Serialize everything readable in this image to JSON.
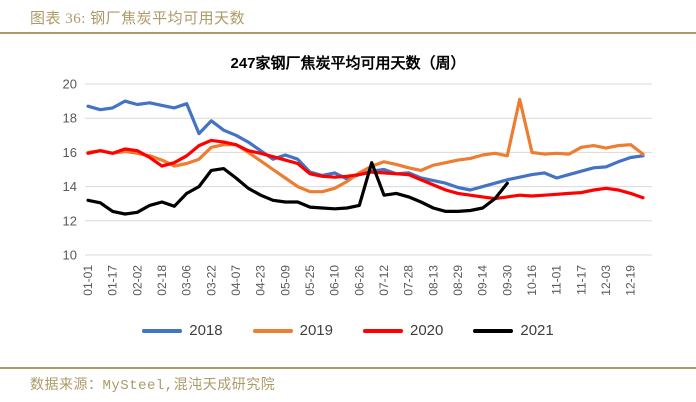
{
  "header": {
    "label": "图表 36: 钢厂焦炭平均可用天数"
  },
  "footer": {
    "source": "数据来源：MySteel,混沌天成研究院"
  },
  "chart_data": {
    "type": "line",
    "title": "247家钢厂焦炭平均可用天数（周）",
    "ylabel": "",
    "xlabel": "",
    "ylim": [
      10,
      20
    ],
    "yticks": [
      10,
      12,
      14,
      16,
      18,
      20
    ],
    "grid": true,
    "grid_color": "#D9D9D9",
    "axis_text_color": "#595959",
    "legend_position": "bottom",
    "x": [
      "01-01",
      "01-09",
      "01-17",
      "01-25",
      "02-02",
      "02-10",
      "02-18",
      "02-26",
      "03-06",
      "03-14",
      "03-22",
      "03-30",
      "04-07",
      "04-15",
      "04-23",
      "05-01",
      "05-09",
      "05-17",
      "05-25",
      "06-02",
      "06-10",
      "06-18",
      "06-26",
      "07-04",
      "07-12",
      "07-20",
      "07-28",
      "08-05",
      "08-13",
      "08-21",
      "08-29",
      "09-06",
      "09-14",
      "09-22",
      "09-30",
      "10-08",
      "10-16",
      "10-24",
      "11-01",
      "11-09",
      "11-17",
      "11-25",
      "12-03",
      "12-11",
      "12-19",
      "12-27"
    ],
    "x_tick_labels": [
      "01-01",
      "01-17",
      "02-02",
      "02-18",
      "03-06",
      "03-22",
      "04-07",
      "04-23",
      "05-09",
      "05-25",
      "06-10",
      "06-26",
      "07-12",
      "07-28",
      "08-13",
      "08-29",
      "09-14",
      "09-30",
      "10-16",
      "11-01",
      "11-17",
      "12-03",
      "12-19"
    ],
    "series": [
      {
        "name": "2018",
        "color": "#4472C4",
        "values": [
          18.7,
          18.5,
          18.6,
          19.0,
          18.8,
          18.9,
          18.75,
          18.6,
          18.85,
          17.1,
          17.85,
          17.3,
          17.0,
          16.6,
          16.1,
          15.6,
          15.85,
          15.6,
          14.85,
          14.65,
          14.8,
          14.45,
          14.7,
          14.9,
          15.0,
          14.75,
          14.8,
          14.5,
          14.35,
          14.2,
          13.95,
          13.8,
          14.0,
          14.2,
          14.4,
          14.55,
          14.7,
          14.8,
          14.5,
          14.7,
          14.9,
          15.1,
          15.15,
          15.45,
          15.7,
          15.8
        ]
      },
      {
        "name": "2019",
        "color": "#ED7D31",
        "values": [
          16.0,
          16.1,
          15.95,
          16.05,
          15.95,
          15.8,
          15.55,
          15.2,
          15.35,
          15.6,
          16.3,
          16.45,
          16.45,
          16.0,
          15.5,
          15.0,
          14.5,
          14.0,
          13.7,
          13.7,
          13.9,
          14.3,
          14.8,
          15.2,
          15.45,
          15.3,
          15.1,
          14.95,
          15.25,
          15.4,
          15.55,
          15.65,
          15.85,
          15.95,
          15.8,
          19.1,
          16.0,
          15.9,
          15.95,
          15.9,
          16.3,
          16.4,
          16.25,
          16.4,
          16.45,
          15.9
        ]
      },
      {
        "name": "2020",
        "color": "#FF0000",
        "values": [
          15.95,
          16.1,
          15.95,
          16.2,
          16.1,
          15.7,
          15.2,
          15.4,
          15.8,
          16.4,
          16.7,
          16.6,
          16.45,
          16.1,
          15.95,
          15.75,
          15.55,
          15.35,
          14.75,
          14.6,
          14.55,
          14.6,
          14.7,
          14.85,
          14.8,
          14.75,
          14.7,
          14.4,
          14.1,
          13.8,
          13.6,
          13.5,
          13.4,
          13.3,
          13.4,
          13.5,
          13.45,
          13.5,
          13.55,
          13.6,
          13.65,
          13.8,
          13.9,
          13.8,
          13.6,
          13.35
        ]
      },
      {
        "name": "2021",
        "color": "#000000",
        "values": [
          13.2,
          13.05,
          12.55,
          12.4,
          12.5,
          12.9,
          13.1,
          12.85,
          13.6,
          14.0,
          14.95,
          15.05,
          14.5,
          13.9,
          13.5,
          13.2,
          13.1,
          13.1,
          12.8,
          12.75,
          12.7,
          12.75,
          12.9,
          15.4,
          13.5,
          13.6,
          13.4,
          13.1,
          12.75,
          12.55,
          12.55,
          12.6,
          12.75,
          13.3,
          14.2
        ]
      }
    ]
  }
}
